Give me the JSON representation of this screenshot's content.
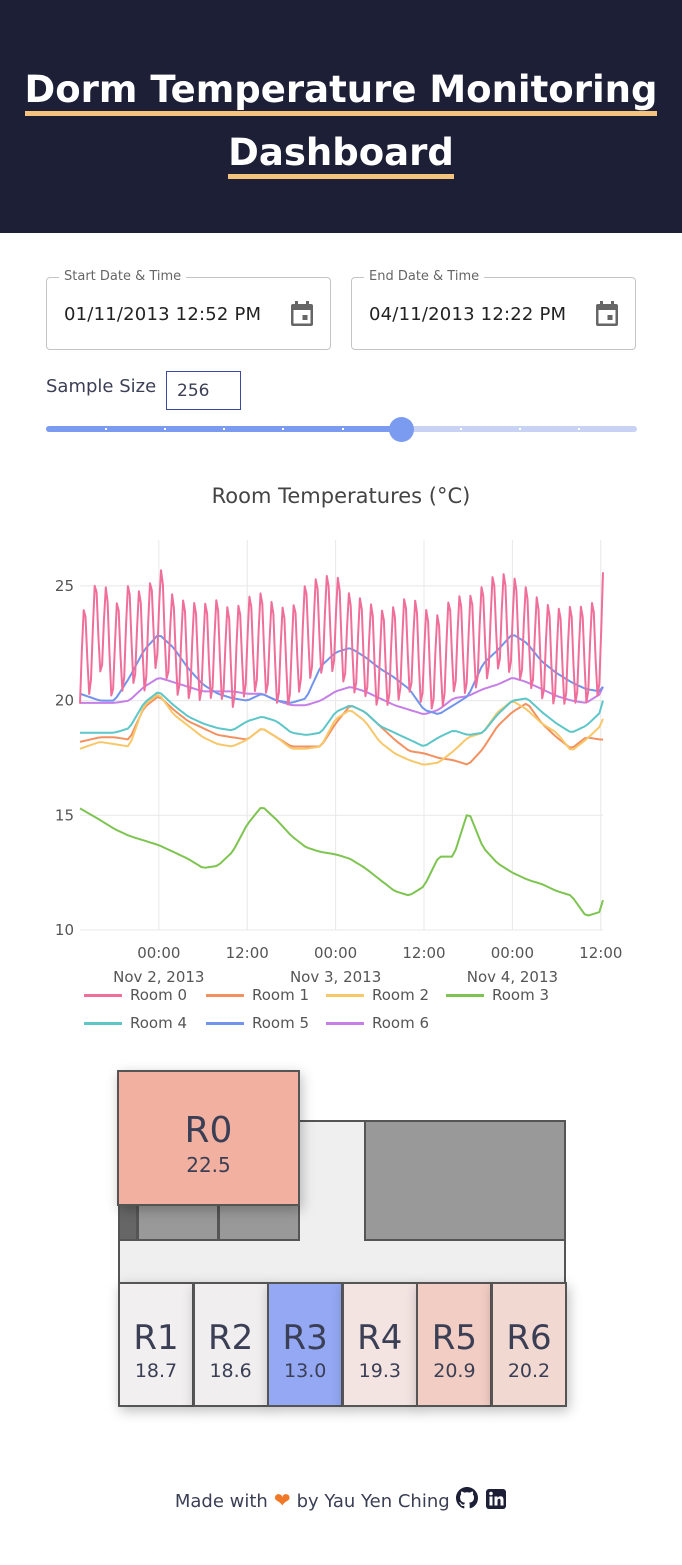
{
  "header": {
    "title_line1": "Dorm Temperature Monitoring",
    "title_line2": "Dashboard"
  },
  "controls": {
    "start": {
      "label": "Start Date & Time",
      "value": "01/11/2013 12:52 PM"
    },
    "end": {
      "label": "End Date & Time",
      "value": "04/11/2013 12:22 PM"
    },
    "sample_size": {
      "label": "Sample Size",
      "value": "256"
    },
    "slider": {
      "value_fraction": 0.6,
      "ticks": 10
    }
  },
  "chart_data": {
    "type": "line",
    "title": "Room Temperatures (°C)",
    "y_ticks": [
      "25",
      "20",
      "15",
      "10"
    ],
    "ylim": [
      10,
      25
    ],
    "x_ticks": [
      {
        "time": "00:00",
        "date": "Nov 2, 2013"
      },
      {
        "time": "12:00",
        "date": ""
      },
      {
        "time": "00:00",
        "date": "Nov 3, 2013"
      },
      {
        "time": "12:00",
        "date": ""
      },
      {
        "time": "00:00",
        "date": "Nov 4, 2013"
      },
      {
        "time": "12:00",
        "date": ""
      }
    ],
    "x_hours": [
      -10.7,
      -8,
      -6,
      -4,
      -2,
      0,
      2,
      4,
      6,
      8,
      10,
      12,
      14,
      16,
      18,
      20,
      22,
      24,
      26,
      28,
      30,
      32,
      34,
      36,
      38,
      40,
      42,
      44,
      46,
      48,
      50,
      52,
      54,
      56,
      58,
      60,
      60.3
    ],
    "series": [
      {
        "name": "Room 0",
        "color": "#f06e9a",
        "values": [
          21.5,
          23.4,
          22.0,
          23.0,
          22.5,
          23.8,
          22.4,
          22.2,
          22.1,
          22.3,
          21.8,
          22.4,
          22.6,
          22.0,
          21.9,
          23.0,
          23.3,
          23.4,
          22.5,
          22.3,
          21.8,
          22.0,
          22.5,
          21.9,
          21.6,
          22.5,
          22.4,
          22.9,
          23.5,
          23.3,
          22.8,
          22.2,
          21.9,
          22.0,
          22.0,
          22.4,
          23.5
        ]
      },
      {
        "name": "Room 1",
        "color": "#f39060",
        "values": [
          18.2,
          18.4,
          18.4,
          18.3,
          19.7,
          20.2,
          19.6,
          19.1,
          18.8,
          18.5,
          18.4,
          18.3,
          18.8,
          18.4,
          18.0,
          18.0,
          18.0,
          19.0,
          19.8,
          19.5,
          18.9,
          18.3,
          17.8,
          17.7,
          17.5,
          17.4,
          17.2,
          17.9,
          18.9,
          19.5,
          19.9,
          19.0,
          18.4,
          17.9,
          18.4,
          18.3,
          18.3
        ]
      },
      {
        "name": "Room 2",
        "color": "#f7c86a",
        "values": [
          17.9,
          18.2,
          18.1,
          18.0,
          19.8,
          20.3,
          19.4,
          18.9,
          18.4,
          18.1,
          18.0,
          18.3,
          18.8,
          18.4,
          17.9,
          17.9,
          18.0,
          19.2,
          19.6,
          19.1,
          18.2,
          17.7,
          17.4,
          17.2,
          17.3,
          17.8,
          18.4,
          18.6,
          19.5,
          20.0,
          19.6,
          19.0,
          18.6,
          17.8,
          18.3,
          18.9,
          19.2
        ]
      },
      {
        "name": "Room 3",
        "color": "#7ec450",
        "values": [
          15.3,
          14.8,
          14.4,
          14.1,
          13.9,
          13.7,
          13.4,
          13.1,
          12.7,
          12.8,
          13.4,
          14.6,
          15.4,
          14.8,
          14.1,
          13.6,
          13.4,
          13.3,
          13.1,
          12.7,
          12.2,
          11.7,
          11.5,
          11.9,
          13.2,
          13.2,
          15.2,
          13.6,
          12.9,
          12.5,
          12.2,
          12.0,
          11.7,
          11.5,
          10.6,
          10.8,
          11.3
        ]
      },
      {
        "name": "Room 4",
        "color": "#5cc6c8",
        "values": [
          18.6,
          18.6,
          18.6,
          18.8,
          19.9,
          20.4,
          19.8,
          19.3,
          19.0,
          18.8,
          18.7,
          19.1,
          19.3,
          19.1,
          18.6,
          18.5,
          18.6,
          19.5,
          19.8,
          19.5,
          18.9,
          18.6,
          18.3,
          18.0,
          18.4,
          18.7,
          18.5,
          18.6,
          19.4,
          20.0,
          20.1,
          19.5,
          19.0,
          18.6,
          18.9,
          19.5,
          20.0
        ]
      },
      {
        "name": "Room 5",
        "color": "#7394ec",
        "values": [
          20.3,
          20.0,
          20.0,
          21.0,
          22.2,
          22.9,
          22.3,
          21.4,
          20.7,
          20.3,
          20.1,
          20.0,
          20.3,
          20.0,
          19.9,
          20.1,
          21.5,
          22.1,
          22.3,
          21.9,
          21.4,
          21.0,
          20.5,
          19.6,
          19.4,
          19.8,
          20.2,
          21.6,
          22.2,
          22.9,
          22.5,
          21.7,
          21.2,
          20.8,
          20.5,
          20.4,
          20.6
        ]
      },
      {
        "name": "Room 6",
        "color": "#c57fe6",
        "values": [
          19.9,
          19.9,
          19.9,
          20.0,
          20.6,
          21.0,
          20.8,
          20.6,
          20.4,
          20.4,
          20.4,
          20.3,
          20.3,
          20.0,
          19.8,
          19.8,
          20.0,
          20.4,
          20.6,
          20.4,
          20.1,
          19.8,
          19.6,
          19.4,
          19.6,
          20.1,
          20.2,
          20.5,
          20.7,
          21.0,
          20.8,
          20.5,
          20.2,
          20.0,
          19.9,
          20.3,
          20.6
        ]
      }
    ],
    "oscillation_series": "Room 0",
    "legend_placement": "bottom",
    "grid": true
  },
  "floorplan": {
    "rooms": [
      {
        "name": "R0",
        "temp": "22.5",
        "color": "#f2b0a0"
      },
      {
        "name": "R1",
        "temp": "18.7",
        "color": "#f1efef"
      },
      {
        "name": "R2",
        "temp": "18.6",
        "color": "#f0eeee"
      },
      {
        "name": "R3",
        "temp": "13.0",
        "color": "#94a8f4"
      },
      {
        "name": "R4",
        "temp": "19.3",
        "color": "#f3e4e2"
      },
      {
        "name": "R5",
        "temp": "20.9",
        "color": "#f1cdc3"
      },
      {
        "name": "R6",
        "temp": "20.2",
        "color": "#f1d8d1"
      }
    ]
  },
  "footer": {
    "made_with": "Made with",
    "by": "by Yau Yen Ching",
    "heart_icon": "heart-icon",
    "github_icon": "github-icon",
    "linkedin_icon": "linkedin-icon"
  }
}
